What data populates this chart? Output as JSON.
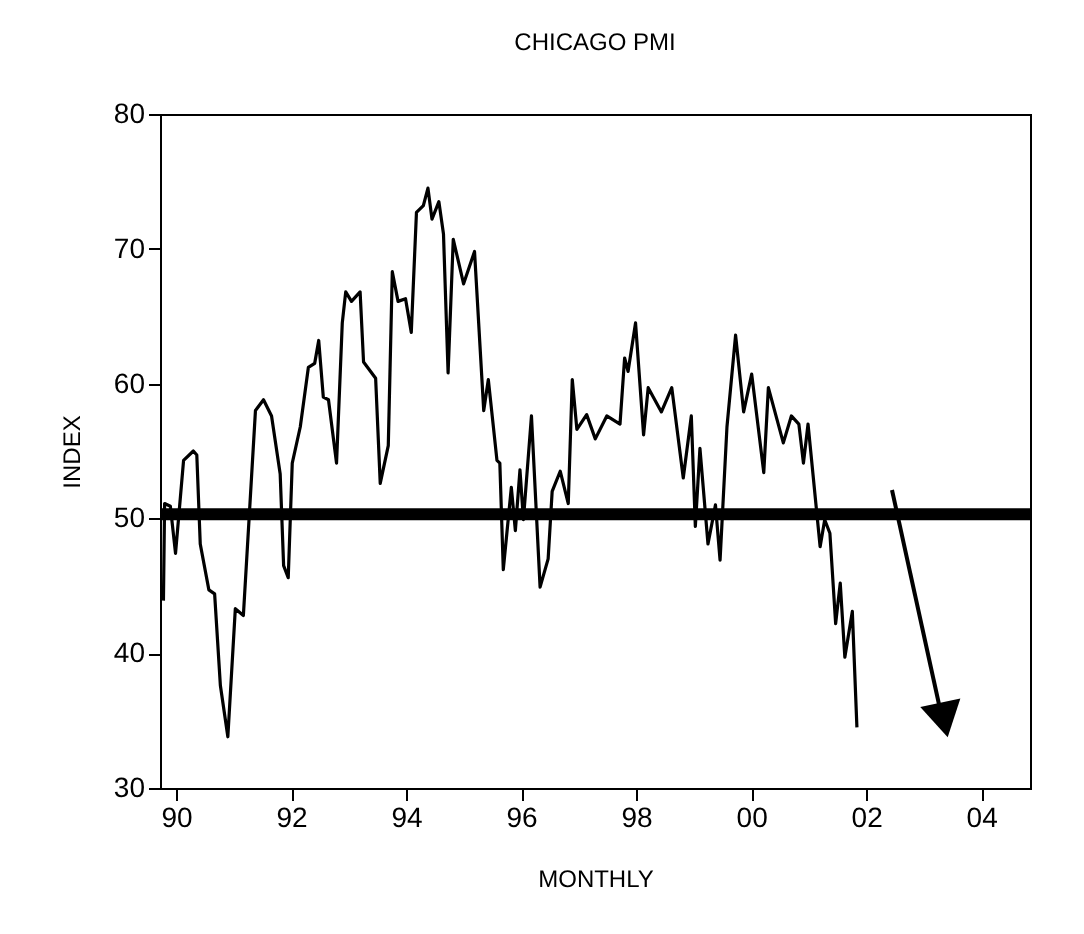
{
  "chart_data": {
    "type": "line",
    "title": "CHICAGO PMI",
    "xlabel": "MONTHLY",
    "ylabel": "INDEX",
    "series": [
      {
        "color": "#000000",
        "x": [
          1989.78,
          1989.8,
          1989.9,
          1989.99,
          1990.13,
          1990.3,
          1990.36,
          1990.42,
          1990.57,
          1990.67,
          1990.77,
          1990.9,
          1991.03,
          1991.17,
          1991.38,
          1991.52,
          1991.66,
          1991.81,
          1991.87,
          1991.95,
          1992.02,
          1992.16,
          1992.3,
          1992.41,
          1992.48,
          1992.56,
          1992.65,
          1992.79,
          1992.89,
          1992.95,
          1993.05,
          1993.2,
          1993.26,
          1993.47,
          1993.55,
          1993.69,
          1993.76,
          1993.86,
          1993.99,
          1994.09,
          1994.18,
          1994.3,
          1994.38,
          1994.45,
          1994.57,
          1994.65,
          1994.73,
          1994.82,
          1995.0,
          1995.19,
          1995.35,
          1995.43,
          1995.58,
          1995.63,
          1995.69,
          1995.83,
          1995.9,
          1995.98,
          1996.04,
          1996.18,
          1996.33,
          1996.47,
          1996.54,
          1996.68,
          1996.82,
          1996.89,
          1996.97,
          1997.14,
          1997.29,
          1997.49,
          1997.72,
          1997.8,
          1997.86,
          1997.99,
          1998.13,
          1998.21,
          1998.44,
          1998.62,
          1998.82,
          1998.96,
          1999.03,
          1999.11,
          1999.25,
          1999.38,
          1999.46,
          1999.58,
          1999.73,
          1999.87,
          2000.01,
          2000.22,
          2000.3,
          2000.56,
          2000.7,
          2000.83,
          2000.91,
          2000.99,
          2001.2,
          2001.28,
          2001.37,
          2001.47,
          2001.55,
          2001.63,
          2001.76,
          2001.84
        ],
        "values": [
          43.9,
          51.1,
          50.9,
          47.4,
          54.3,
          55,
          54.7,
          48.1,
          44.7,
          44.4,
          37.6,
          33.8,
          43.3,
          42.8,
          58,
          58.8,
          57.6,
          53.3,
          46.5,
          45.6,
          54.1,
          56.8,
          61.2,
          61.5,
          63.2,
          59,
          58.8,
          54.1,
          64.5,
          66.8,
          66.1,
          66.8,
          61.6,
          60.4,
          52.6,
          55.4,
          68.3,
          66.1,
          66.3,
          63.8,
          72.7,
          73.2,
          74.5,
          72.2,
          73.5,
          71.1,
          60.8,
          70.7,
          67.4,
          69.8,
          58,
          60.3,
          54.3,
          54.1,
          46.2,
          52.3,
          49.1,
          53.6,
          49.9,
          57.6,
          44.9,
          47,
          52,
          53.5,
          51.1,
          60.3,
          56.6,
          57.7,
          55.9,
          57.6,
          57,
          61.9,
          60.9,
          64.5,
          56.2,
          59.7,
          57.9,
          59.7,
          53,
          57.6,
          49.4,
          55.2,
          48.1,
          51,
          46.9,
          56.8,
          63.6,
          57.9,
          60.7,
          53.4,
          59.7,
          55.6,
          57.6,
          57,
          54.1,
          57,
          47.9,
          49.9,
          48.9,
          42.2,
          45.2,
          39.7,
          43.1,
          34.5
        ]
      }
    ],
    "xlim": [
      1989.72,
      2004.85
    ],
    "xticks": [
      {
        "value": 1990,
        "label": "90"
      },
      {
        "value": 1992,
        "label": "92"
      },
      {
        "value": 1994,
        "label": "94"
      },
      {
        "value": 1996,
        "label": "96"
      },
      {
        "value": 1998,
        "label": "98"
      },
      {
        "value": 2000,
        "label": "00"
      },
      {
        "value": 2002,
        "label": "02"
      },
      {
        "value": 2004,
        "label": "04"
      }
    ],
    "ylim": [
      30,
      80
    ],
    "yticks": [
      30,
      40,
      50,
      60,
      70,
      80
    ],
    "ref_lines": [
      {
        "axis": "y",
        "value": 50.3,
        "color": "#000000"
      }
    ],
    "grid": false
  }
}
